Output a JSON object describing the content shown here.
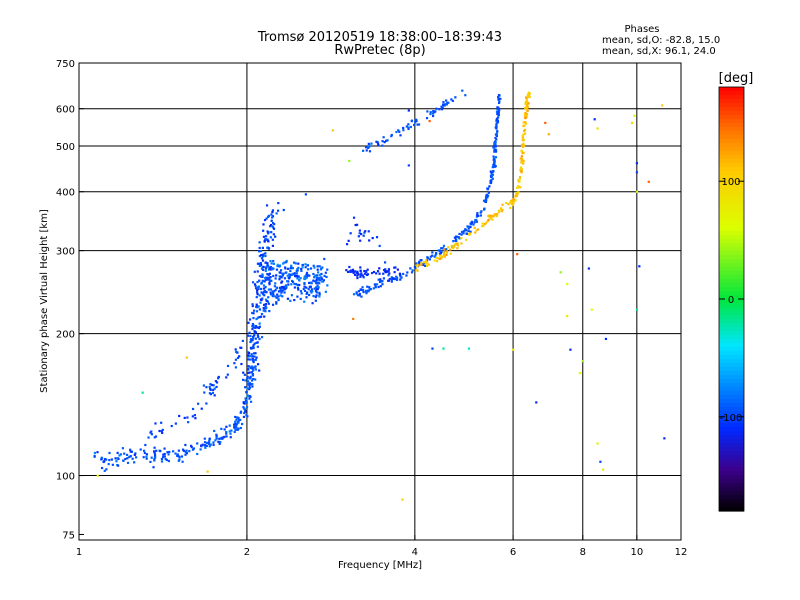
{
  "chart_data": {
    "type": "scatter",
    "title": "Tromsø 20120519 18:38:00–18:39:43",
    "subtitle": "RwPretec (8p)",
    "info": {
      "heading": "Phases",
      "line1": "mean, sd,O: -82.8, 15.0",
      "line2": "mean, sd,X:  96.1, 24.0"
    },
    "xlabel": "Frequency [MHz]",
    "ylabel": "Stationary phase Virtual Height [km]",
    "x_scale": "log",
    "y_scale": "log",
    "xlim": [
      1,
      12
    ],
    "ylim": [
      73,
      750
    ],
    "x_ticks": [
      1,
      2,
      4,
      6,
      8,
      10,
      12
    ],
    "x_tick_labels": [
      "1",
      "2",
      "4",
      "6",
      "8",
      "10",
      "12"
    ],
    "x_grid": [
      2,
      4,
      6,
      8,
      10
    ],
    "y_ticks": [
      75,
      100,
      200,
      300,
      400,
      500,
      600,
      750
    ],
    "y_tick_labels": [
      "75",
      "100",
      "200",
      "300",
      "400",
      "500",
      "600",
      "750"
    ],
    "y_grid": [
      100,
      200,
      300,
      400,
      500,
      600
    ],
    "grid": true,
    "colorbar": {
      "label": "[deg]",
      "range": [
        -180,
        180
      ],
      "ticks": [
        100,
        0,
        -100
      ],
      "tick_labels": [
        "100",
        "0",
        "-100"
      ]
    },
    "traces": [
      {
        "curve": [
          [
            1.07,
            110
          ],
          [
            1.12,
            106
          ],
          [
            1.2,
            109
          ],
          [
            1.3,
            111
          ],
          [
            1.4,
            110
          ],
          [
            1.5,
            111
          ],
          [
            1.6,
            113
          ],
          [
            1.7,
            116
          ],
          [
            1.8,
            122
          ],
          [
            1.9,
            126
          ],
          [
            1.97,
            135
          ],
          [
            2.02,
            155
          ],
          [
            2.05,
            175
          ]
        ],
        "spread": 0.04,
        "n": 240,
        "phase": -95,
        "phase_sd": 15
      },
      {
        "curve": [
          [
            1.3,
            121
          ],
          [
            1.4,
            126
          ],
          [
            1.5,
            130
          ],
          [
            1.6,
            136
          ],
          [
            1.7,
            150
          ],
          [
            1.8,
            160
          ],
          [
            1.9,
            175
          ],
          [
            1.97,
            190
          ]
        ],
        "spread": 0.05,
        "n": 60,
        "phase": -100,
        "phase_sd": 12
      },
      {
        "curve": [
          [
            2.02,
            160
          ],
          [
            2.05,
            190
          ],
          [
            2.08,
            220
          ],
          [
            2.12,
            260
          ],
          [
            2.15,
            300
          ],
          [
            2.2,
            340
          ],
          [
            2.25,
            370
          ]
        ],
        "spread": 0.08,
        "n": 200,
        "phase": -100,
        "phase_sd": 18
      },
      {
        "curve": [
          [
            2.1,
            230
          ],
          [
            2.2,
            240
          ],
          [
            2.3,
            250
          ],
          [
            2.4,
            258
          ],
          [
            2.5,
            255
          ],
          [
            2.6,
            248
          ],
          [
            2.7,
            255
          ]
        ],
        "spread": 0.07,
        "n": 180,
        "phase": -95,
        "phase_sd": 20
      },
      {
        "curve": [
          [
            2.1,
            270
          ],
          [
            2.3,
            275
          ],
          [
            2.5,
            270
          ],
          [
            2.65,
            268
          ],
          [
            2.8,
            265
          ]
        ],
        "spread": 0.06,
        "n": 120,
        "phase": -90,
        "phase_sd": 22
      },
      {
        "curve": [
          [
            3.1,
            243
          ],
          [
            3.3,
            248
          ],
          [
            3.5,
            256
          ],
          [
            3.8,
            266
          ],
          [
            4.0,
            276
          ],
          [
            4.2,
            288
          ],
          [
            4.5,
            302
          ],
          [
            4.8,
            320
          ],
          [
            5.1,
            345
          ],
          [
            5.3,
            372
          ],
          [
            5.45,
            410
          ],
          [
            5.55,
            460
          ],
          [
            5.6,
            530
          ],
          [
            5.65,
            600
          ],
          [
            5.67,
            640
          ]
        ],
        "spread": 0.02,
        "n": 260,
        "phase": -95,
        "phase_sd": 10
      },
      {
        "curve": [
          [
            4.0,
            275
          ],
          [
            4.3,
            285
          ],
          [
            4.6,
            300
          ],
          [
            4.9,
            318
          ],
          [
            5.2,
            335
          ],
          [
            5.5,
            355
          ],
          [
            5.8,
            372
          ],
          [
            6.0,
            380
          ],
          [
            6.1,
            400
          ],
          [
            6.2,
            440
          ],
          [
            6.25,
            500
          ],
          [
            6.3,
            560
          ],
          [
            6.35,
            620
          ],
          [
            6.4,
            650
          ]
        ],
        "spread": 0.02,
        "n": 200,
        "phase": 110,
        "phase_sd": 20
      },
      {
        "curve": [
          [
            3.0,
            272
          ],
          [
            3.2,
            270
          ],
          [
            3.5,
            268
          ],
          [
            3.8,
            270
          ]
        ],
        "spread": 0.03,
        "n": 60,
        "phase": -110,
        "phase_sd": 12
      },
      {
        "curve": [
          [
            3.2,
            490
          ],
          [
            3.5,
            510
          ],
          [
            3.8,
            540
          ],
          [
            4.1,
            570
          ],
          [
            4.4,
            600
          ],
          [
            4.7,
            630
          ],
          [
            4.9,
            650
          ]
        ],
        "spread": 0.02,
        "n": 70,
        "phase": -95,
        "phase_sd": 15
      },
      {
        "curve": [
          [
            3.0,
            330
          ],
          [
            3.3,
            320
          ],
          [
            3.6,
            310
          ]
        ],
        "spread": 0.08,
        "n": 20,
        "phase": -105,
        "phase_sd": 15
      }
    ],
    "scatter_points": [
      {
        "x": 2.85,
        "y": 540,
        "phase": 110
      },
      {
        "x": 3.05,
        "y": 465,
        "phase": 40
      },
      {
        "x": 3.9,
        "y": 595,
        "phase": -110
      },
      {
        "x": 3.9,
        "y": 455,
        "phase": -100
      },
      {
        "x": 4.25,
        "y": 565,
        "phase": 150
      },
      {
        "x": 3.1,
        "y": 215,
        "phase": 140
      },
      {
        "x": 4.3,
        "y": 186,
        "phase": -100
      },
      {
        "x": 4.5,
        "y": 186,
        "phase": -20
      },
      {
        "x": 5.0,
        "y": 186,
        "phase": -30
      },
      {
        "x": 6.1,
        "y": 295,
        "phase": 150
      },
      {
        "x": 6.0,
        "y": 185,
        "phase": 80
      },
      {
        "x": 6.6,
        "y": 143,
        "phase": -110
      },
      {
        "x": 6.85,
        "y": 560,
        "phase": 150
      },
      {
        "x": 6.95,
        "y": 530,
        "phase": 120
      },
      {
        "x": 7.3,
        "y": 270,
        "phase": 40
      },
      {
        "x": 7.5,
        "y": 255,
        "phase": 60
      },
      {
        "x": 7.5,
        "y": 218,
        "phase": 80
      },
      {
        "x": 7.6,
        "y": 185,
        "phase": -110
      },
      {
        "x": 7.9,
        "y": 165,
        "phase": 60
      },
      {
        "x": 8.0,
        "y": 175,
        "phase": 40
      },
      {
        "x": 8.2,
        "y": 275,
        "phase": -110
      },
      {
        "x": 8.3,
        "y": 225,
        "phase": 60
      },
      {
        "x": 8.8,
        "y": 195,
        "phase": -110
      },
      {
        "x": 8.4,
        "y": 570,
        "phase": -110
      },
      {
        "x": 8.5,
        "y": 545,
        "phase": 90
      },
      {
        "x": 8.5,
        "y": 117,
        "phase": 70
      },
      {
        "x": 8.6,
        "y": 107,
        "phase": -100
      },
      {
        "x": 8.7,
        "y": 103,
        "phase": 80
      },
      {
        "x": 9.8,
        "y": 560,
        "phase": 90
      },
      {
        "x": 9.9,
        "y": 580,
        "phase": 70
      },
      {
        "x": 10.0,
        "y": 460,
        "phase": -110
      },
      {
        "x": 10.0,
        "y": 440,
        "phase": -100
      },
      {
        "x": 10.0,
        "y": 400,
        "phase": 50
      },
      {
        "x": 10.1,
        "y": 278,
        "phase": -110
      },
      {
        "x": 10.0,
        "y": 225,
        "phase": -20
      },
      {
        "x": 10.5,
        "y": 420,
        "phase": 150
      },
      {
        "x": 11.1,
        "y": 610,
        "phase": 110
      },
      {
        "x": 11.2,
        "y": 120,
        "phase": -110
      },
      {
        "x": 3.8,
        "y": 89,
        "phase": 100
      },
      {
        "x": 1.7,
        "y": 102,
        "phase": 110
      },
      {
        "x": 1.56,
        "y": 178,
        "phase": 110
      },
      {
        "x": 1.3,
        "y": 150,
        "phase": -20
      },
      {
        "x": 1.08,
        "y": 100,
        "phase": 70
      },
      {
        "x": 2.55,
        "y": 395,
        "phase": -100
      },
      {
        "x": 2.45,
        "y": 265,
        "phase": -110
      }
    ]
  }
}
